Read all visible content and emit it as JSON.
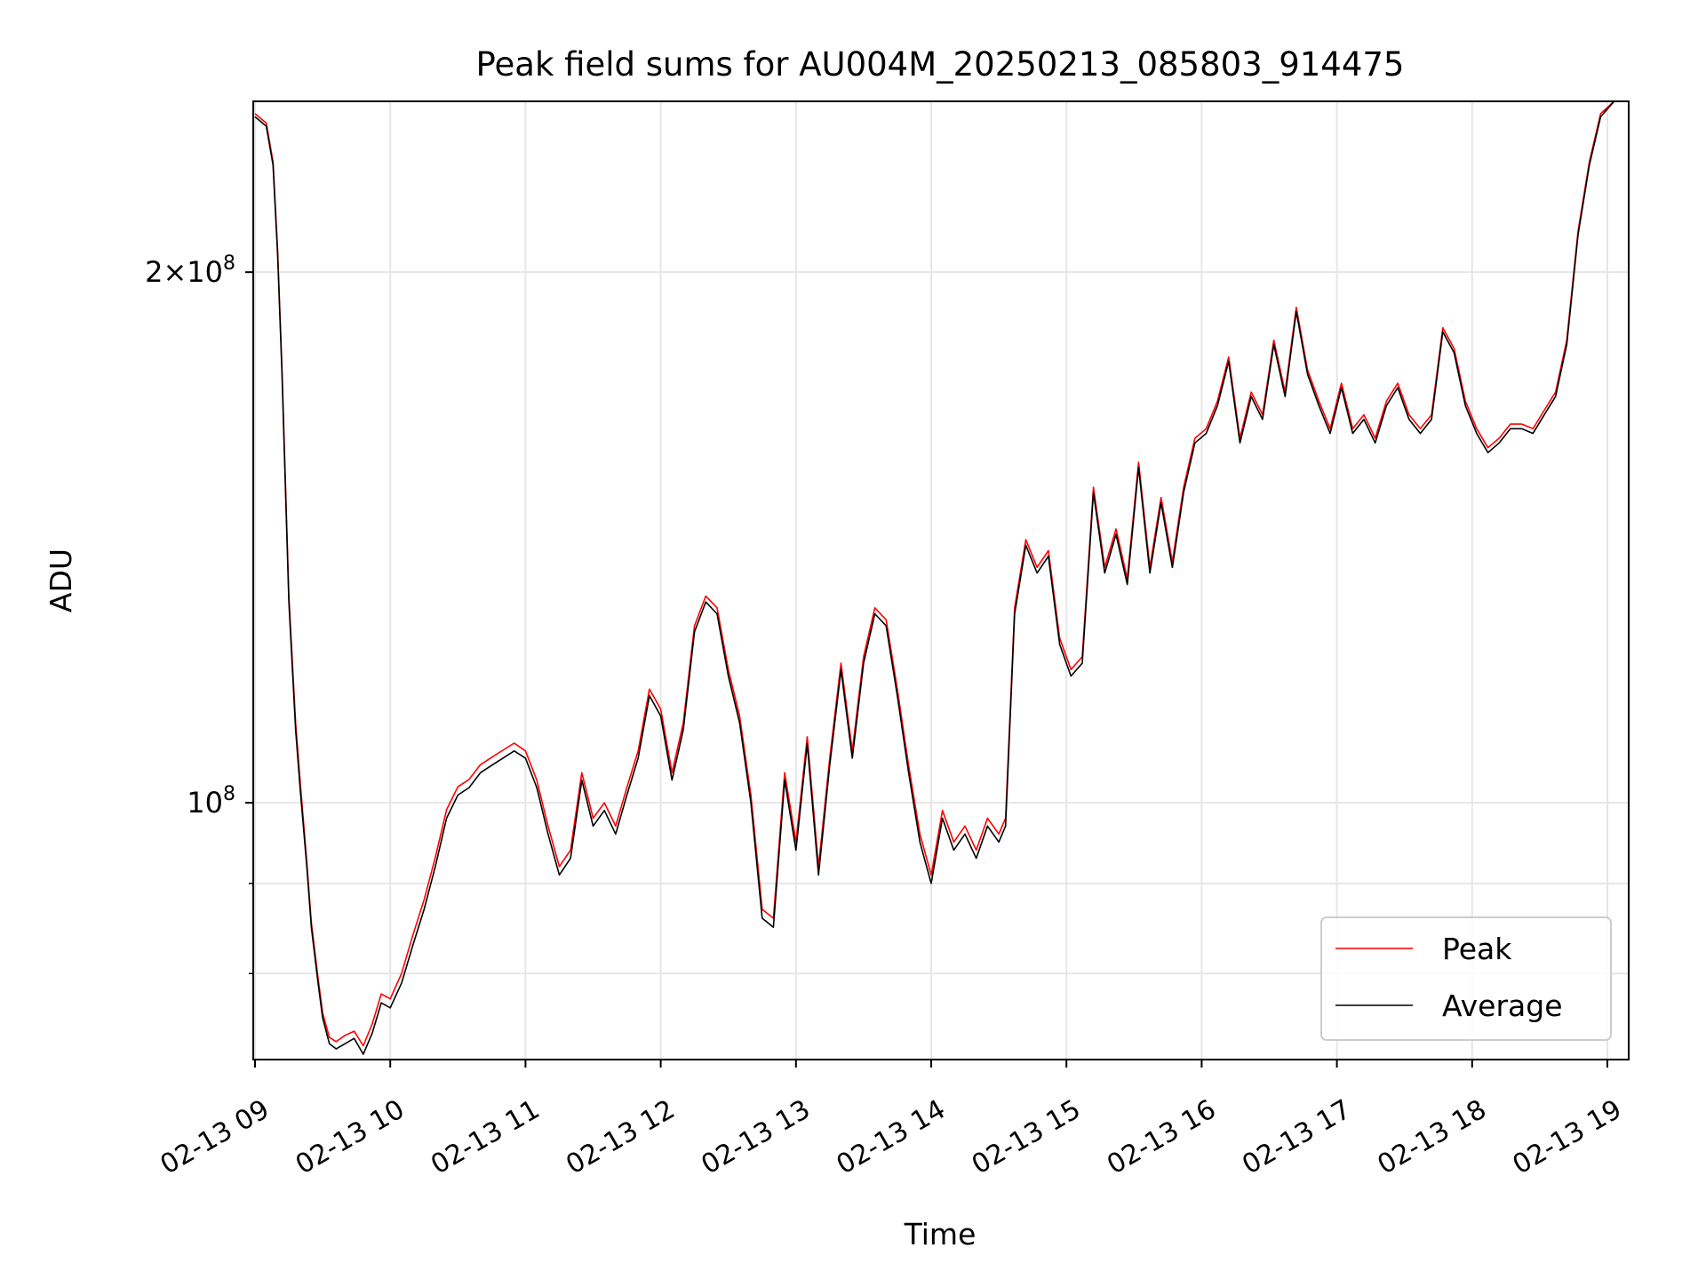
{
  "chart_data": {
    "type": "line",
    "title": "Peak field sums for AU004M_20250213_085803_914475",
    "xlabel": "Time",
    "ylabel": "ADU",
    "y_scale": "log",
    "ylim": [
      71500000,
      250000000
    ],
    "y_major_ticks": [
      {
        "value": 100000000,
        "base": "10",
        "exp": "8",
        "coef": ""
      },
      {
        "value": 200000000,
        "base": "10",
        "exp": "8",
        "coef": "2×"
      }
    ],
    "y_minor_ticks": [
      80000000,
      90000000
    ],
    "x_tick_labels": [
      "02-13 09",
      "02-13 10",
      "02-13 11",
      "02-13 12",
      "02-13 13",
      "02-13 14",
      "02-13 15",
      "02-13 16",
      "02-13 17",
      "02-13 18",
      "02-13 19"
    ],
    "grid": true,
    "legend": {
      "position": "lower right",
      "entries": [
        {
          "name": "Peak",
          "color": "#ff0000"
        },
        {
          "name": "Average",
          "color": "#000000"
        }
      ]
    },
    "series": [
      {
        "name": "Average",
        "color": "#000000",
        "points": [
          [
            "09:00",
            245000000
          ],
          [
            "09:05",
            242000000
          ],
          [
            "09:08",
            230000000
          ],
          [
            "09:10",
            205000000
          ],
          [
            "09:12",
            175000000
          ],
          [
            "09:15",
            130000000
          ],
          [
            "09:18",
            110000000
          ],
          [
            "09:20",
            102000000
          ],
          [
            "09:23",
            92000000
          ],
          [
            "09:25",
            85000000
          ],
          [
            "09:28",
            79000000
          ],
          [
            "09:30",
            75500000
          ],
          [
            "09:33",
            73000000
          ],
          [
            "09:36",
            72500000
          ],
          [
            "09:40",
            73000000
          ],
          [
            "09:44",
            73500000
          ],
          [
            "09:48",
            72000000
          ],
          [
            "09:52",
            74000000
          ],
          [
            "09:56",
            77000000
          ],
          [
            "10:00",
            76500000
          ],
          [
            "10:05",
            79000000
          ],
          [
            "10:10",
            83000000
          ],
          [
            "10:15",
            87000000
          ],
          [
            "10:20",
            92000000
          ],
          [
            "10:25",
            98000000
          ],
          [
            "10:30",
            101000000
          ],
          [
            "10:35",
            102000000
          ],
          [
            "10:40",
            104000000
          ],
          [
            "10:45",
            105000000
          ],
          [
            "10:50",
            106000000
          ],
          [
            "10:55",
            107000000
          ],
          [
            "11:00",
            106000000
          ],
          [
            "11:05",
            102000000
          ],
          [
            "11:10",
            96000000
          ],
          [
            "11:15",
            91000000
          ],
          [
            "11:20",
            93000000
          ],
          [
            "11:25",
            103000000
          ],
          [
            "11:30",
            97000000
          ],
          [
            "11:35",
            99000000
          ],
          [
            "11:40",
            96000000
          ],
          [
            "11:45",
            101000000
          ],
          [
            "11:50",
            106000000
          ],
          [
            "11:55",
            115000000
          ],
          [
            "12:00",
            112000000
          ],
          [
            "12:05",
            103000000
          ],
          [
            "12:10",
            110000000
          ],
          [
            "12:15",
            125000000
          ],
          [
            "12:20",
            130000000
          ],
          [
            "12:25",
            128000000
          ],
          [
            "12:30",
            118000000
          ],
          [
            "12:35",
            111000000
          ],
          [
            "12:40",
            100000000
          ],
          [
            "12:45",
            86000000
          ],
          [
            "12:50",
            85000000
          ],
          [
            "12:55",
            103000000
          ],
          [
            "13:00",
            94000000
          ],
          [
            "13:05",
            108000000
          ],
          [
            "13:10",
            91000000
          ],
          [
            "13:15",
            105000000
          ],
          [
            "13:20",
            119000000
          ],
          [
            "13:25",
            106000000
          ],
          [
            "13:30",
            120000000
          ],
          [
            "13:35",
            128000000
          ],
          [
            "13:40",
            126000000
          ],
          [
            "13:45",
            115000000
          ],
          [
            "13:50",
            104000000
          ],
          [
            "13:55",
            95000000
          ],
          [
            "14:00",
            90000000
          ],
          [
            "14:05",
            98000000
          ],
          [
            "14:10",
            94000000
          ],
          [
            "14:15",
            96000000
          ],
          [
            "14:20",
            93000000
          ],
          [
            "14:25",
            97000000
          ],
          [
            "14:30",
            95000000
          ],
          [
            "14:33",
            97000000
          ],
          [
            "14:37",
            128000000
          ],
          [
            "14:42",
            140000000
          ],
          [
            "14:47",
            135000000
          ],
          [
            "14:52",
            138000000
          ],
          [
            "14:57",
            123000000
          ],
          [
            "15:02",
            118000000
          ],
          [
            "15:07",
            120000000
          ],
          [
            "15:12",
            150000000
          ],
          [
            "15:17",
            135000000
          ],
          [
            "15:22",
            142000000
          ],
          [
            "15:27",
            133000000
          ],
          [
            "15:32",
            155000000
          ],
          [
            "15:37",
            135000000
          ],
          [
            "15:42",
            148000000
          ],
          [
            "15:47",
            136000000
          ],
          [
            "15:52",
            150000000
          ],
          [
            "15:57",
            160000000
          ],
          [
            "16:02",
            162000000
          ],
          [
            "16:07",
            168000000
          ],
          [
            "16:12",
            178000000
          ],
          [
            "16:17",
            160000000
          ],
          [
            "16:22",
            170000000
          ],
          [
            "16:27",
            165000000
          ],
          [
            "16:32",
            182000000
          ],
          [
            "16:37",
            170000000
          ],
          [
            "16:42",
            190000000
          ],
          [
            "16:47",
            175000000
          ],
          [
            "16:52",
            168000000
          ],
          [
            "16:57",
            162000000
          ],
          [
            "17:02",
            172000000
          ],
          [
            "17:07",
            162000000
          ],
          [
            "17:12",
            165000000
          ],
          [
            "17:17",
            160000000
          ],
          [
            "17:22",
            168000000
          ],
          [
            "17:27",
            172000000
          ],
          [
            "17:32",
            165000000
          ],
          [
            "17:37",
            162000000
          ],
          [
            "17:42",
            165000000
          ],
          [
            "17:47",
            185000000
          ],
          [
            "17:52",
            180000000
          ],
          [
            "17:57",
            168000000
          ],
          [
            "18:02",
            162000000
          ],
          [
            "18:07",
            158000000
          ],
          [
            "18:12",
            160000000
          ],
          [
            "18:17",
            163000000
          ],
          [
            "18:22",
            163000000
          ],
          [
            "18:27",
            162000000
          ],
          [
            "18:32",
            166000000
          ],
          [
            "18:37",
            170000000
          ],
          [
            "18:42",
            182000000
          ],
          [
            "18:47",
            210000000
          ],
          [
            "18:52",
            230000000
          ],
          [
            "18:57",
            245000000
          ],
          [
            "19:03",
            250000000
          ]
        ]
      },
      {
        "name": "Peak",
        "color": "#ff0000",
        "points": [
          [
            "09:00",
            246000000
          ],
          [
            "09:05",
            243000000
          ],
          [
            "09:08",
            231000000
          ],
          [
            "09:10",
            206000000
          ],
          [
            "09:12",
            176000000
          ],
          [
            "09:15",
            131000000
          ],
          [
            "09:18",
            111000000
          ],
          [
            "09:20",
            103000000
          ],
          [
            "09:23",
            92500000
          ],
          [
            "09:25",
            85500000
          ],
          [
            "09:28",
            79500000
          ],
          [
            "09:30",
            76000000
          ],
          [
            "09:33",
            73600000
          ],
          [
            "09:36",
            73200000
          ],
          [
            "09:40",
            73800000
          ],
          [
            "09:44",
            74200000
          ],
          [
            "09:48",
            72800000
          ],
          [
            "09:52",
            74900000
          ],
          [
            "09:56",
            77900000
          ],
          [
            "10:00",
            77400000
          ],
          [
            "10:05",
            80000000
          ],
          [
            "10:10",
            84100000
          ],
          [
            "10:15",
            88100000
          ],
          [
            "10:20",
            93100000
          ],
          [
            "10:25",
            99100000
          ],
          [
            "10:30",
            102100000
          ],
          [
            "10:35",
            103100000
          ],
          [
            "10:40",
            105100000
          ],
          [
            "10:45",
            106100000
          ],
          [
            "10:50",
            107100000
          ],
          [
            "10:55",
            108100000
          ],
          [
            "11:00",
            107000000
          ],
          [
            "11:05",
            103000000
          ],
          [
            "11:10",
            97000000
          ],
          [
            "11:15",
            92000000
          ],
          [
            "11:20",
            94000000
          ],
          [
            "11:25",
            104000000
          ],
          [
            "11:30",
            98000000
          ],
          [
            "11:35",
            100000000
          ],
          [
            "11:40",
            97000000
          ],
          [
            "11:45",
            102000000
          ],
          [
            "11:50",
            107000000
          ],
          [
            "11:55",
            116000000
          ],
          [
            "12:00",
            113000000
          ],
          [
            "12:05",
            104000000
          ],
          [
            "12:10",
            111000000
          ],
          [
            "12:15",
            126000000
          ],
          [
            "12:20",
            131000000
          ],
          [
            "12:25",
            129000000
          ],
          [
            "12:30",
            119000000
          ],
          [
            "12:35",
            112000000
          ],
          [
            "12:40",
            101000000
          ],
          [
            "12:45",
            87000000
          ],
          [
            "12:50",
            86000000
          ],
          [
            "12:55",
            104000000
          ],
          [
            "13:00",
            95000000
          ],
          [
            "13:05",
            109000000
          ],
          [
            "13:10",
            92000000
          ],
          [
            "13:15",
            106000000
          ],
          [
            "13:20",
            120000000
          ],
          [
            "13:25",
            107000000
          ],
          [
            "13:30",
            121000000
          ],
          [
            "13:35",
            129000000
          ],
          [
            "13:40",
            127000000
          ],
          [
            "13:45",
            116000000
          ],
          [
            "13:50",
            105000000
          ],
          [
            "13:55",
            96000000
          ],
          [
            "14:00",
            91000000
          ],
          [
            "14:05",
            99000000
          ],
          [
            "14:10",
            95000000
          ],
          [
            "14:15",
            97000000
          ],
          [
            "14:20",
            94000000
          ],
          [
            "14:25",
            98000000
          ],
          [
            "14:30",
            96000000
          ],
          [
            "14:33",
            98000000
          ],
          [
            "14:37",
            129000000
          ],
          [
            "14:42",
            141000000
          ],
          [
            "14:47",
            136000000
          ],
          [
            "14:52",
            139000000
          ],
          [
            "14:57",
            124000000
          ],
          [
            "15:02",
            119000000
          ],
          [
            "15:07",
            121000000
          ],
          [
            "15:12",
            151000000
          ],
          [
            "15:17",
            136000000
          ],
          [
            "15:22",
            143000000
          ],
          [
            "15:27",
            134000000
          ],
          [
            "15:32",
            156000000
          ],
          [
            "15:37",
            136000000
          ],
          [
            "15:42",
            149000000
          ],
          [
            "15:47",
            137000000
          ],
          [
            "15:52",
            151000000
          ],
          [
            "15:57",
            161000000
          ],
          [
            "16:02",
            163000000
          ],
          [
            "16:07",
            169000000
          ],
          [
            "16:12",
            179000000
          ],
          [
            "16:17",
            161000000
          ],
          [
            "16:22",
            171000000
          ],
          [
            "16:27",
            166000000
          ],
          [
            "16:32",
            183000000
          ],
          [
            "16:37",
            171000000
          ],
          [
            "16:42",
            191000000
          ],
          [
            "16:47",
            176000000
          ],
          [
            "16:52",
            169000000
          ],
          [
            "16:57",
            163000000
          ],
          [
            "17:02",
            173000000
          ],
          [
            "17:07",
            163000000
          ],
          [
            "17:12",
            166000000
          ],
          [
            "17:17",
            161000000
          ],
          [
            "17:22",
            169000000
          ],
          [
            "17:27",
            173000000
          ],
          [
            "17:32",
            166000000
          ],
          [
            "17:37",
            163000000
          ],
          [
            "17:42",
            166000000
          ],
          [
            "17:47",
            186000000
          ],
          [
            "17:52",
            181000000
          ],
          [
            "17:57",
            169000000
          ],
          [
            "18:02",
            163000000
          ],
          [
            "18:07",
            159000000
          ],
          [
            "18:12",
            161000000
          ],
          [
            "18:17",
            164000000
          ],
          [
            "18:22",
            164000000
          ],
          [
            "18:27",
            163000000
          ],
          [
            "18:32",
            167000000
          ],
          [
            "18:37",
            171000000
          ],
          [
            "18:42",
            183000000
          ],
          [
            "18:47",
            211000000
          ],
          [
            "18:52",
            231000000
          ],
          [
            "18:57",
            246000000
          ],
          [
            "19:03",
            251000000
          ]
        ]
      }
    ]
  }
}
